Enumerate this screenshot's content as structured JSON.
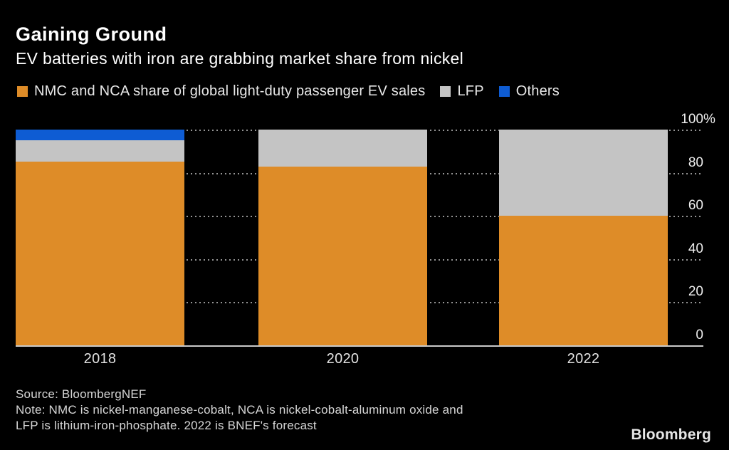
{
  "header": {
    "title": "Gaining Ground",
    "subtitle": "EV batteries with iron are grabbing market share from nickel"
  },
  "legend": {
    "items": [
      {
        "label": "NMC and NCA share of global light-duty passenger EV sales",
        "color": "#de8c28"
      },
      {
        "label": "LFP",
        "color": "#c4c4c4"
      },
      {
        "label": "Others",
        "color": "#0e5cd3"
      }
    ]
  },
  "chart_data": {
    "type": "bar",
    "stacked": true,
    "title": "Gaining Ground",
    "subtitle": "EV batteries with iron are grabbing market share from nickel",
    "categories": [
      "2018",
      "2020",
      "2022"
    ],
    "series": [
      {
        "name": "NMC and NCA share of global light-duty passenger EV sales",
        "color": "#de8c28",
        "values": [
          85,
          83,
          60
        ]
      },
      {
        "name": "LFP",
        "color": "#c4c4c4",
        "values": [
          10,
          17,
          40
        ]
      },
      {
        "name": "Others",
        "color": "#0e5cd3",
        "values": [
          5,
          0,
          0
        ]
      }
    ],
    "xlabel": "",
    "ylabel": "",
    "ylim": [
      0,
      100
    ],
    "unit": "%",
    "yticks": [
      {
        "value": 0,
        "label": "0",
        "suffix": ""
      },
      {
        "value": 20,
        "label": "20",
        "suffix": ""
      },
      {
        "value": 40,
        "label": "40",
        "suffix": ""
      },
      {
        "value": 60,
        "label": "60",
        "suffix": ""
      },
      {
        "value": 80,
        "label": "80",
        "suffix": ""
      },
      {
        "value": 100,
        "label": "100",
        "suffix": "%"
      }
    ],
    "grid": "horizontal-dotted",
    "legend_position": "top",
    "grid_color": "#949494",
    "baseline_color": "#c9c9c9",
    "background_color": "#000000"
  },
  "footer": {
    "source": "Source: BloombergNEF",
    "note_line1": "Note: NMC is nickel-manganese-cobalt, NCA is nickel-cobalt-aluminum oxide and",
    "note_line2": "LFP is lithium-iron-phosphate. 2022 is BNEF's forecast",
    "logo": "Bloomberg"
  }
}
